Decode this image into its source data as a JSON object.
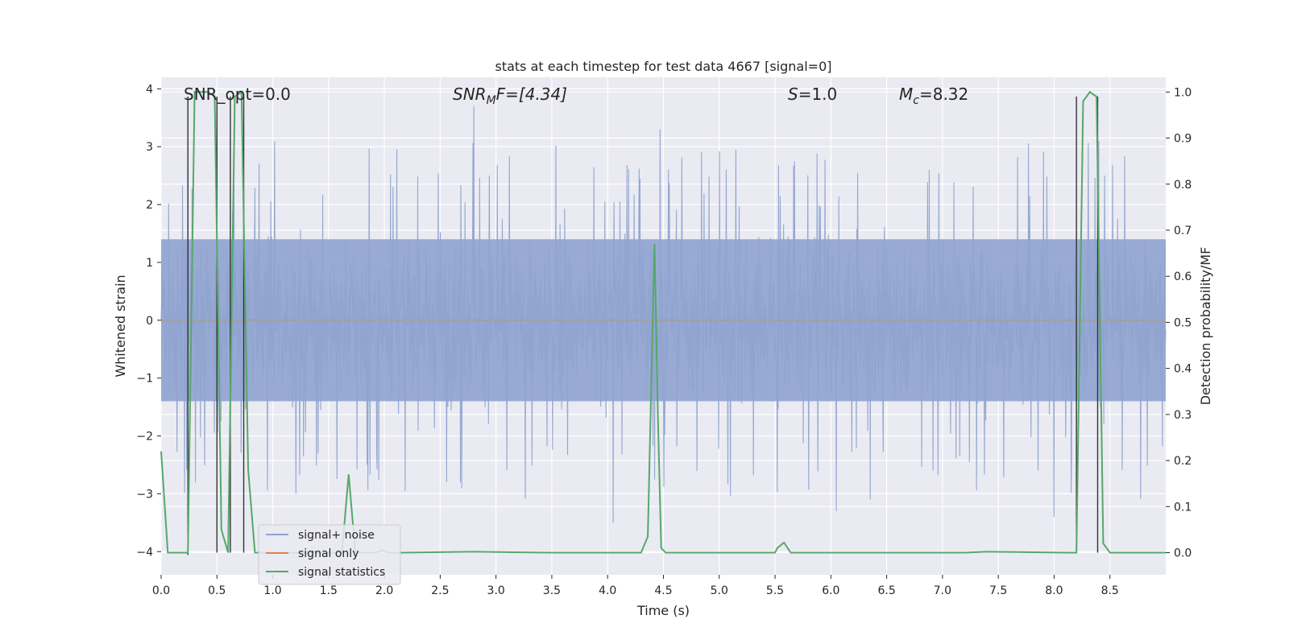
{
  "chart_data": {
    "type": "line",
    "title": "stats at each timestep for test data 4667 [signal=0]",
    "xlabel": "Time (s)",
    "ylabel_left": "Whitened strain",
    "ylabel_right": "Detection probability/MF",
    "xlim": [
      0.0,
      9.0
    ],
    "ylim_left": [
      -4.4,
      4.2
    ],
    "ylim_right": [
      -0.048,
      1.032
    ],
    "x_ticks": [
      "0.0",
      "0.5",
      "1.0",
      "1.5",
      "2.0",
      "2.5",
      "3.0",
      "3.5",
      "4.0",
      "4.5",
      "5.0",
      "5.5",
      "6.0",
      "6.5",
      "7.0",
      "7.5",
      "8.0",
      "8.5"
    ],
    "y_left_ticks": [
      "4",
      "3",
      "2",
      "1",
      "0",
      "−1",
      "−2",
      "−3",
      "−4"
    ],
    "y_right_ticks": [
      "1.0",
      "0.9",
      "0.8",
      "0.7",
      "0.6",
      "0.5",
      "0.4",
      "0.3",
      "0.2",
      "0.1",
      "0.0"
    ],
    "grid": true,
    "annotations": {
      "snr_opt": "SNR_opt=0.0",
      "snr_mf_label": "SNR",
      "snr_mf_sub": "M",
      "snr_mf_rest": "F=[4.34]",
      "s_label": "S",
      "s_rest": "=1.0",
      "mc_label": "M",
      "mc_sub": "c",
      "mc_rest": "=8.32"
    },
    "legend": {
      "position": "lower-left",
      "entries": [
        {
          "label": "signal+ noise",
          "color": "#8fa3d0"
        },
        {
          "label": "signal only",
          "color": "#dd8452"
        },
        {
          "label": "signal statistics",
          "color": "#55a868"
        }
      ]
    },
    "noise_series": {
      "name": "signal+ noise",
      "color": "#8fa3d0",
      "dense_band": [
        -1.4,
        1.4
      ],
      "spike_max": 3.7,
      "spike_min": -3.5,
      "sample_peaks": [
        {
          "x": 2.8,
          "y": 3.7
        },
        {
          "x": 4.47,
          "y": 3.3
        },
        {
          "x": 4.05,
          "y": -3.5
        },
        {
          "x": 6.05,
          "y": -3.3
        },
        {
          "x": 8.0,
          "y": -3.4
        },
        {
          "x": 8.4,
          "y": 3.1
        }
      ]
    },
    "signal_only": {
      "name": "signal only",
      "color": "#dd8452",
      "value": 0.0
    },
    "statistics_series": {
      "name": "signal statistics",
      "color": "#55a868",
      "x": [
        0.0,
        0.06,
        0.12,
        0.18,
        0.24,
        0.3,
        0.36,
        0.42,
        0.48,
        0.54,
        0.6,
        0.66,
        0.72,
        0.78,
        0.84,
        0.9,
        0.96,
        1.02,
        1.08,
        1.14,
        1.2,
        1.26,
        1.32,
        1.38,
        1.44,
        1.5,
        1.56,
        1.62,
        1.68,
        1.74,
        1.8,
        1.86,
        1.92,
        1.98,
        2.04,
        2.1,
        2.8,
        3.5,
        4.3,
        4.36,
        4.42,
        4.45,
        4.48,
        4.52,
        4.58,
        5.5,
        5.52,
        5.58,
        5.64,
        6.5,
        7.2,
        7.4,
        8.1,
        8.2,
        8.26,
        8.32,
        8.38,
        8.44,
        8.5,
        8.6,
        9.0
      ],
      "y": [
        0.22,
        0.0,
        0.0,
        0.0,
        0.0,
        1.0,
        1.0,
        1.0,
        0.99,
        0.05,
        0.0,
        0.99,
        1.0,
        0.18,
        0.0,
        0.0,
        0.0,
        0.0,
        0.0,
        0.0,
        0.0,
        0.0,
        0.0,
        0.0,
        0.0,
        0.0,
        0.0,
        0.0,
        0.17,
        0.0,
        0.0,
        0.0,
        0.0,
        0.005,
        0.0,
        0.0,
        0.002,
        0.0,
        0.0,
        0.035,
        0.67,
        0.3,
        0.01,
        0.0,
        0.0,
        0.0,
        0.01,
        0.022,
        0.0,
        0.0,
        0.0,
        0.002,
        0.0,
        0.0,
        0.98,
        1.0,
        0.99,
        0.02,
        0.0,
        0.0,
        0.0
      ]
    },
    "detection_markers": {
      "color": "#333333",
      "x": [
        0.24,
        0.5,
        0.62,
        0.74,
        8.2,
        8.39
      ],
      "y_top": [
        0.99,
        0.99,
        0.99,
        0.99,
        0.99,
        0.99
      ],
      "y_bottom": [
        -0.005,
        0.0,
        0.0,
        0.0,
        0.0,
        0.0
      ]
    }
  }
}
